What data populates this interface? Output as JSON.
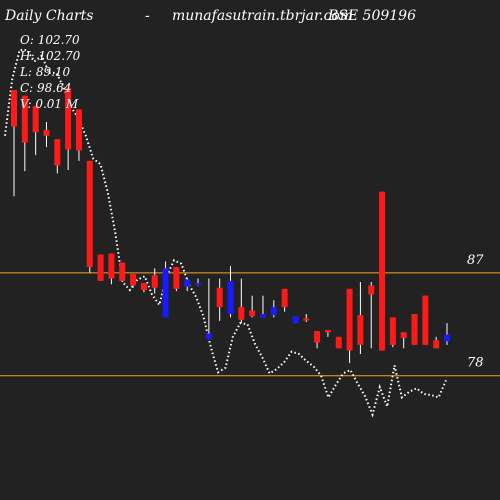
{
  "header": {
    "title_left": "Daily Charts",
    "dash": "-",
    "site": "munafasutrain.tbrjar.com",
    "symbol": "BSE 509196"
  },
  "ohlc": {
    "open": "O: 102.70",
    "high": "H: 102.70",
    "low": "L: 89.10",
    "close": "C: 98.64",
    "volume": "V: 0.01 M"
  },
  "colors": {
    "background": "#222222",
    "bull": "#1a1aff",
    "bear": "#ff1a1a",
    "wick": "#ffffff",
    "level_line": "#f5a623",
    "dotted_line": "#ffffff"
  },
  "chart_data": {
    "type": "candlestick",
    "levels": [
      {
        "label": "87",
        "value": 87
      },
      {
        "label": "78",
        "value": 78
      }
    ],
    "candles": [
      {
        "o": 103.0,
        "h": 103.0,
        "l": 93.7,
        "c": 99.8,
        "color": "red"
      },
      {
        "o": 102.5,
        "h": 102.5,
        "l": 95.9,
        "c": 98.4,
        "color": "red"
      },
      {
        "o": 101.6,
        "h": 101.6,
        "l": 97.3,
        "c": 99.3,
        "color": "red"
      },
      {
        "o": 99.5,
        "h": 100.2,
        "l": 98.0,
        "c": 99.0,
        "color": "red"
      },
      {
        "o": 98.7,
        "h": 98.7,
        "l": 95.7,
        "c": 96.4,
        "color": "red"
      },
      {
        "o": 103.2,
        "h": 103.2,
        "l": 96.0,
        "c": 97.8,
        "color": "red"
      },
      {
        "o": 101.3,
        "h": 101.3,
        "l": 96.8,
        "c": 97.7,
        "color": "red"
      },
      {
        "o": 96.8,
        "h": 96.8,
        "l": 87.0,
        "c": 87.5,
        "color": "red"
      },
      {
        "o": 88.6,
        "h": 88.6,
        "l": 86.3,
        "c": 86.3,
        "color": "red"
      },
      {
        "o": 88.7,
        "h": 88.7,
        "l": 86.0,
        "c": 86.5,
        "color": "red"
      },
      {
        "o": 87.9,
        "h": 87.9,
        "l": 86.2,
        "c": 86.3,
        "color": "red"
      },
      {
        "o": 86.9,
        "h": 86.9,
        "l": 85.7,
        "c": 85.9,
        "color": "red"
      },
      {
        "o": 86.1,
        "h": 86.1,
        "l": 85.3,
        "c": 85.5,
        "color": "red"
      },
      {
        "o": 86.8,
        "h": 87.4,
        "l": 85.2,
        "c": 85.7,
        "color": "red"
      },
      {
        "o": 83.1,
        "h": 88.0,
        "l": 83.1,
        "c": 87.4,
        "color": "blue"
      },
      {
        "o": 87.5,
        "h": 87.5,
        "l": 85.4,
        "c": 85.6,
        "color": "red"
      },
      {
        "o": 85.8,
        "h": 86.5,
        "l": 85.4,
        "c": 86.4,
        "color": "blue"
      },
      {
        "o": 86.0,
        "h": 86.5,
        "l": 85.9,
        "c": 86.1,
        "color": "blue"
      },
      {
        "o": 81.2,
        "h": 86.5,
        "l": 81.2,
        "c": 81.7,
        "color": "blue"
      },
      {
        "o": 85.7,
        "h": 86.5,
        "l": 82.8,
        "c": 84.0,
        "color": "red"
      },
      {
        "o": 83.4,
        "h": 87.6,
        "l": 83.1,
        "c": 86.3,
        "color": "blue"
      },
      {
        "o": 84.0,
        "h": 86.5,
        "l": 82.6,
        "c": 82.9,
        "color": "red"
      },
      {
        "o": 83.7,
        "h": 85.0,
        "l": 83.1,
        "c": 83.2,
        "color": "red"
      },
      {
        "o": 83.1,
        "h": 85.0,
        "l": 83.1,
        "c": 83.4,
        "color": "blue"
      },
      {
        "o": 83.3,
        "h": 84.6,
        "l": 83.1,
        "c": 84.0,
        "color": "blue"
      },
      {
        "o": 85.6,
        "h": 85.6,
        "l": 83.6,
        "c": 84.0,
        "color": "red"
      },
      {
        "o": 82.6,
        "h": 83.1,
        "l": 82.6,
        "c": 83.2,
        "color": "blue"
      },
      {
        "o": 82.9,
        "h": 83.4,
        "l": 82.7,
        "c": 83.0,
        "color": "red"
      },
      {
        "o": 81.9,
        "h": 81.9,
        "l": 80.4,
        "c": 80.9,
        "color": "red"
      },
      {
        "o": 82.0,
        "h": 82.0,
        "l": 81.4,
        "c": 81.8,
        "color": "red"
      },
      {
        "o": 81.4,
        "h": 81.4,
        "l": 80.4,
        "c": 80.4,
        "color": "red"
      },
      {
        "o": 85.6,
        "h": 85.6,
        "l": 79.1,
        "c": 80.2,
        "color": "red"
      },
      {
        "o": 83.3,
        "h": 86.2,
        "l": 79.9,
        "c": 80.7,
        "color": "red"
      },
      {
        "o": 85.9,
        "h": 86.2,
        "l": 80.4,
        "c": 85.1,
        "color": "red"
      },
      {
        "o": 94.1,
        "h": 94.1,
        "l": 80.2,
        "c": 80.2,
        "color": "red"
      },
      {
        "o": 83.1,
        "h": 83.1,
        "l": 80.5,
        "c": 80.7,
        "color": "red"
      },
      {
        "o": 81.8,
        "h": 81.8,
        "l": 80.4,
        "c": 81.3,
        "color": "red"
      },
      {
        "o": 83.4,
        "h": 83.4,
        "l": 80.7,
        "c": 80.7,
        "color": "red"
      },
      {
        "o": 85.0,
        "h": 85.0,
        "l": 80.7,
        "c": 80.7,
        "color": "red"
      },
      {
        "o": 81.1,
        "h": 81.4,
        "l": 80.4,
        "c": 80.4,
        "color": "red"
      },
      {
        "o": 81.0,
        "h": 82.6,
        "l": 80.7,
        "c": 81.6,
        "color": "blue"
      }
    ],
    "dotted_series": [
      99.0,
      104.0,
      106.5,
      106.5,
      105.5,
      106.0,
      104.5,
      104.5,
      103.2,
      101.5,
      100.5,
      99.0,
      97.0,
      96.5,
      94.0,
      90.5,
      86.2,
      85.5,
      86.4,
      86.7,
      85.1,
      84.2,
      86.7,
      88.1,
      87.8,
      86.0,
      84.9,
      83.2,
      80.5,
      78.3,
      78.7,
      81.4,
      82.6,
      82.5,
      80.8,
      79.6,
      78.2,
      78.6,
      79.2,
      80.1,
      79.9,
      79.3,
      78.8,
      78.0,
      76.1,
      77.2,
      78.2,
      78.5,
      77.3,
      76.2,
      74.6,
      77.0,
      75.3,
      78.9,
      76.1,
      76.6,
      76.9,
      76.4,
      76.3,
      76.1,
      77.6
    ],
    "ylim": [
      68,
      110
    ]
  }
}
